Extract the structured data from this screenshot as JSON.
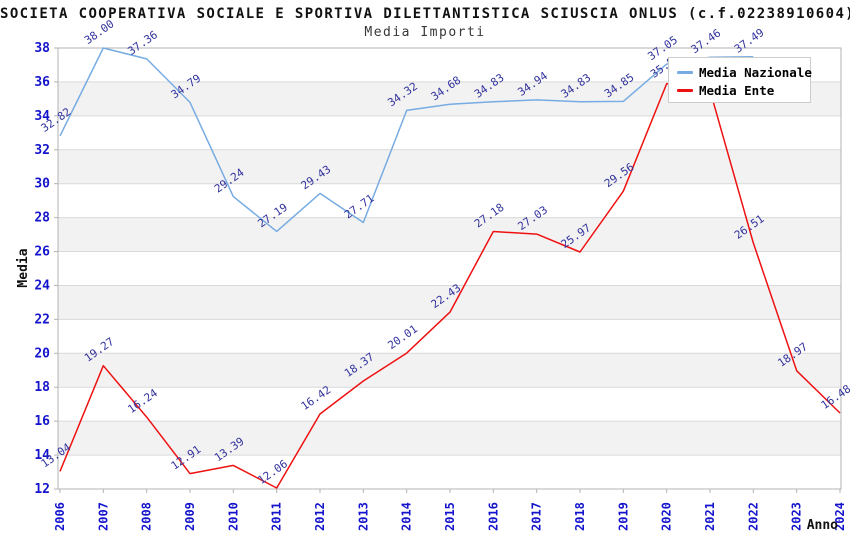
{
  "page": {
    "background": "#ffffff"
  },
  "chart_data": {
    "type": "line",
    "title": "SOCIETA COOPERATIVA SOCIALE E SPORTIVA DILETTANTISTICA SCIUSCIA ONLUS (c.f.02238910604)",
    "subtitle": "Media Importi",
    "xlabel": "Anno",
    "ylabel": "Media",
    "x": [
      2006,
      2007,
      2008,
      2009,
      2010,
      2011,
      2012,
      2013,
      2014,
      2015,
      2016,
      2017,
      2018,
      2019,
      2020,
      2021,
      2022,
      2023,
      2024
    ],
    "ylim": [
      12,
      38
    ],
    "ytick_step": 2,
    "grid": "horizontal-only",
    "bands": "alternating gray bands between gridlines (14-16, 18-20, 22-24, 26-28, 30-32, 34-36)",
    "legend": {
      "position": "top-right",
      "items": [
        "Media Nazionale",
        "Media Ente"
      ]
    },
    "series": [
      {
        "name": "Media Nazionale",
        "color": "#77ace2",
        "values": [
          32.82,
          38.0,
          37.36,
          34.79,
          29.24,
          27.19,
          29.43,
          27.71,
          34.32,
          34.68,
          34.83,
          34.94,
          34.83,
          34.85,
          37.05,
          37.46,
          37.49,
          null,
          null
        ],
        "labels": [
          "32.82",
          "38.00",
          "37.36",
          "34.79",
          "29.24",
          "27.19",
          "29.43",
          "27.71",
          "34.32",
          "34.68",
          "34.83",
          "34.94",
          "34.83",
          "34.85",
          "37.05",
          "37.46",
          "37.49",
          null,
          null
        ]
      },
      {
        "name": "Media Ente",
        "color": "#ee1111",
        "values": [
          13.04,
          19.27,
          16.24,
          12.91,
          13.39,
          12.06,
          16.42,
          18.37,
          20.01,
          22.43,
          27.18,
          27.03,
          25.97,
          29.56,
          35.9,
          35.5,
          26.51,
          18.97,
          16.48
        ],
        "labels": [
          "13.04",
          "19.27",
          "16.24",
          "12.91",
          "13.39",
          "12.06",
          "16.42",
          "18.37",
          "20.01",
          "22.43",
          "27.18",
          "27.03",
          "25.97",
          "29.56",
          "35.9",
          null,
          "26.51",
          "18.97",
          "16.48"
        ]
      }
    ],
    "notes": "Media Nazionale has no visible data after 2022; Media Ente 2021 point and label are hidden behind the legend (value estimated from line slope); red 2020 label partially occluded by legend.",
    "styles": {
      "tick_color": "#1414cc",
      "point_label_color": "#32329e",
      "band_color": "#f2f2f2",
      "grid_color": "#dadada",
      "spine_color": "#b3b3b3",
      "axis_label_color": "#111111"
    }
  }
}
